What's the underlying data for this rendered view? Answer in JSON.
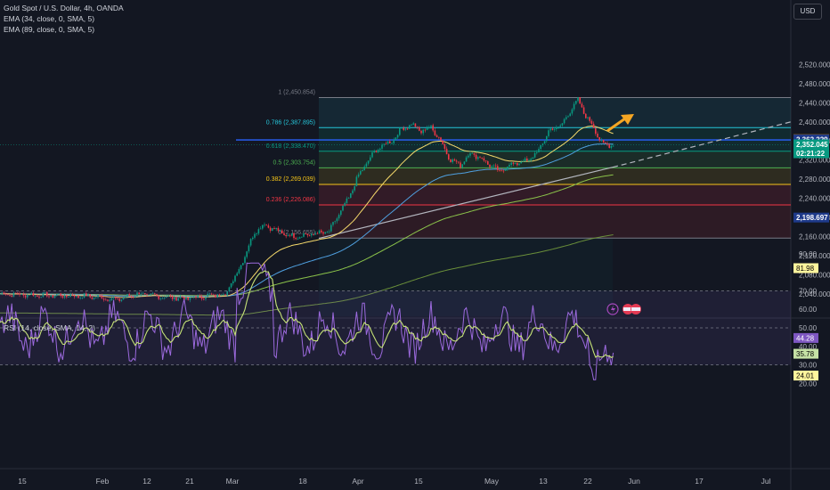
{
  "legend": {
    "symbol": "Gold Spot / U.S. Dollar, 4h, OANDA",
    "ema1": "EMA (34, close, 0, SMA, 5)",
    "ema2": "EMA (89, close, 0, SMA, 5)",
    "rsi": "RSI (14, close, SMA, 14, 2)"
  },
  "currency_button": "USD",
  "price_axis": {
    "ticks": [
      "2,520.000",
      "2,480.000",
      "2,440.000",
      "2,400.000",
      "2,360.000",
      "2,320.000",
      "2,280.000",
      "2,240.000",
      "2,200.000",
      "2,160.000",
      "2,120.000",
      "2,080.000",
      "2,040.000"
    ],
    "tick_values": [
      2520,
      2480,
      2440,
      2400,
      2360,
      2320,
      2280,
      2240,
      2200,
      2160,
      2120,
      2080,
      2040
    ],
    "badges": [
      {
        "text": "2,362.736",
        "value": 2362.736,
        "color": "#f5a623",
        "text_color": "#000000"
      },
      {
        "text": "2,362.229",
        "value": 2362.229,
        "color": "#1e3a8a",
        "text_color": "#ffffff"
      },
      {
        "text": "2,352.045",
        "value": 2352.045,
        "color": "#089981",
        "text_color": "#ffffff"
      },
      {
        "text": "02:21:22",
        "value": 2352.045,
        "color": "#089981",
        "text_color": "#ffffff",
        "offset": 1
      },
      {
        "text": "2,198.697",
        "value": 2198.697,
        "color": "#1e3a8a",
        "text_color": "#ffffff"
      }
    ]
  },
  "fib_levels": [
    {
      "label": "1 (2,450.854)",
      "value": 2450.854,
      "color": "#787b86"
    },
    {
      "label": "0.786 (2,387.895)",
      "value": 2387.895,
      "color": "#26c6da"
    },
    {
      "label": "0.618 (2,338.470)",
      "value": 2338.47,
      "color": "#089981"
    },
    {
      "label": "0.5 (2,303.754)",
      "value": 2303.754,
      "color": "#4caf50"
    },
    {
      "label": "0.382 (2,269.039)",
      "value": 2269.039,
      "color": "#f5c518"
    },
    {
      "label": "0.236 (2,226.086)",
      "value": 2226.086,
      "color": "#f23645"
    },
    {
      "label": "0 (2,156.655)",
      "value": 2156.655,
      "color": "#787b86"
    }
  ],
  "rsi_axis": {
    "ticks": [
      "90.00",
      "70.00",
      "60.00",
      "50.00",
      "40.00",
      "30.00",
      "20.00"
    ],
    "tick_values": [
      90,
      70,
      60,
      50,
      40,
      30,
      20
    ],
    "badges": [
      {
        "text": "81.98",
        "value": 81.98,
        "color": "#fff59d",
        "text_color": "#000000"
      },
      {
        "text": "44.28",
        "value": 44.28,
        "color": "#7e57c2",
        "text_color": "#ffffff"
      },
      {
        "text": "35.78",
        "value": 35.78,
        "color": "#c5e1a5",
        "text_color": "#000000"
      },
      {
        "text": "24.01",
        "value": 24.01,
        "color": "#fff59d",
        "text_color": "#000000"
      }
    ]
  },
  "time_axis": {
    "labels": [
      "15",
      "Feb",
      "12",
      "21",
      "Mar",
      "18",
      "Apr",
      "15",
      "May",
      "13",
      "22",
      "Jun",
      "17",
      "Jul"
    ],
    "positions": [
      25,
      115,
      165,
      213,
      261,
      340,
      402,
      470,
      552,
      610,
      660,
      712,
      785,
      860
    ]
  },
  "annotation_icons": [
    "lightning-icon",
    "us-flag-icon",
    "us-flag-icon"
  ],
  "colors": {
    "background": "#131722",
    "up": "#089981",
    "down": "#f23645",
    "ema34": "#f5d96b",
    "ema89": "#4fa0e0",
    "ema_long": "#8bc34a",
    "rsi_line": "#9c6ade",
    "rsi_ma": "#c6e377",
    "arrow": "#f5a623"
  }
}
